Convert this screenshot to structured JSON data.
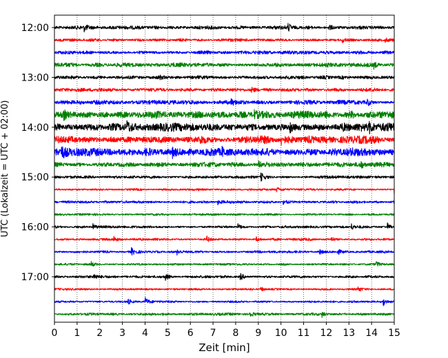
{
  "chart_data": {
    "type": "line",
    "title": "",
    "xlabel": "Zeit  [min]",
    "ylabel": "UTC (Lokalzeit = UTC + 02:00)",
    "xlim": [
      0,
      15
    ],
    "x_ticks": [
      0,
      1,
      2,
      3,
      4,
      5,
      6,
      7,
      8,
      9,
      10,
      11,
      12,
      13,
      14,
      15
    ],
    "x_tick_labels": [
      "0",
      "1",
      "2",
      "3",
      "4",
      "5",
      "6",
      "7",
      "8",
      "9",
      "10",
      "11",
      "12",
      "13",
      "14",
      "15"
    ],
    "x_grid": true,
    "y_tick_labels": [
      "12:00",
      "13:00",
      "14:00",
      "15:00",
      "16:00",
      "17:00"
    ],
    "y_tick_rows": [
      0,
      4,
      8,
      12,
      16,
      20
    ],
    "trace_interval_min": 15,
    "color_cycle": [
      "#000000",
      "#ff0000",
      "#0000ff",
      "#008000"
    ],
    "series": [
      {
        "start": "12:00",
        "amplitude": 0.25,
        "events": [
          [
            1.3,
            0.6
          ],
          [
            10.3,
            0.8
          ],
          [
            12.1,
            0.6
          ]
        ]
      },
      {
        "start": "12:15",
        "amplitude": 0.22,
        "events": [
          [
            12.7,
            0.4
          ],
          [
            14.6,
            0.4
          ]
        ]
      },
      {
        "start": "12:30",
        "amplitude": 0.25,
        "events": []
      },
      {
        "start": "12:45",
        "amplitude": 0.3,
        "events": [
          [
            14.1,
            0.5
          ]
        ]
      },
      {
        "start": "13:00",
        "amplitude": 0.25,
        "events": [
          [
            4.6,
            0.4
          ]
        ]
      },
      {
        "start": "13:15",
        "amplitude": 0.25,
        "events": [
          [
            8.7,
            0.6
          ]
        ]
      },
      {
        "start": "13:30",
        "amplitude": 0.3,
        "events": [
          [
            7.8,
            0.5
          ],
          [
            13.8,
            0.6
          ]
        ]
      },
      {
        "start": "13:45",
        "amplitude": 0.55,
        "events": [
          [
            0.4,
            0.7
          ],
          [
            8.8,
            0.6
          ]
        ]
      },
      {
        "start": "14:00",
        "amplitude": 0.6,
        "events": [
          [
            3.2,
            0.8
          ],
          [
            10.4,
            0.8
          ],
          [
            13.9,
            0.7
          ]
        ]
      },
      {
        "start": "14:15",
        "amplitude": 0.55,
        "events": [
          [
            6.4,
            0.8
          ],
          [
            10.0,
            0.7
          ]
        ]
      },
      {
        "start": "14:30",
        "amplitude": 0.6,
        "events": [
          [
            0.3,
            0.8
          ],
          [
            5.2,
            0.8
          ],
          [
            7.4,
            0.7
          ]
        ]
      },
      {
        "start": "14:45",
        "amplitude": 0.35,
        "events": [
          [
            9.0,
            0.6
          ],
          [
            13.5,
            0.5
          ]
        ]
      },
      {
        "start": "15:00",
        "amplitude": 0.2,
        "events": [
          [
            9.1,
            0.9
          ]
        ]
      },
      {
        "start": "15:15",
        "amplitude": 0.15,
        "events": [
          [
            9.8,
            0.4
          ],
          [
            15.0,
            0.8
          ]
        ]
      },
      {
        "start": "15:30",
        "amplitude": 0.18,
        "events": [
          [
            7.2,
            0.5
          ],
          [
            10.1,
            0.6
          ]
        ]
      },
      {
        "start": "15:45",
        "amplitude": 0.15,
        "events": []
      },
      {
        "start": "16:00",
        "amplitude": 0.18,
        "events": [
          [
            1.7,
            0.5
          ],
          [
            8.1,
            0.5
          ],
          [
            13.1,
            0.6
          ],
          [
            14.7,
            0.6
          ]
        ]
      },
      {
        "start": "16:15",
        "amplitude": 0.18,
        "events": [
          [
            2.6,
            0.5
          ],
          [
            6.7,
            0.6
          ],
          [
            8.9,
            0.5
          ],
          [
            12.2,
            0.5
          ]
        ]
      },
      {
        "start": "16:30",
        "amplitude": 0.18,
        "events": [
          [
            3.4,
            0.6
          ],
          [
            5.4,
            0.5
          ],
          [
            11.7,
            0.5
          ],
          [
            12.5,
            0.4
          ]
        ]
      },
      {
        "start": "16:45",
        "amplitude": 0.15,
        "events": [
          [
            1.6,
            0.5
          ],
          [
            14.2,
            0.5
          ]
        ]
      },
      {
        "start": "17:00",
        "amplitude": 0.18,
        "events": [
          [
            1.7,
            0.6
          ],
          [
            4.9,
            0.5
          ],
          [
            8.2,
            0.6
          ]
        ]
      },
      {
        "start": "17:15",
        "amplitude": 0.15,
        "events": [
          [
            9.1,
            0.5
          ],
          [
            13.4,
            0.4
          ]
        ]
      },
      {
        "start": "17:30",
        "amplitude": 0.15,
        "events": [
          [
            3.2,
            0.6
          ],
          [
            4.0,
            0.8
          ],
          [
            14.5,
            0.8
          ]
        ]
      },
      {
        "start": "17:45",
        "amplitude": 0.18,
        "events": [
          [
            8.6,
            0.6
          ],
          [
            11.8,
            0.5
          ]
        ]
      }
    ]
  }
}
